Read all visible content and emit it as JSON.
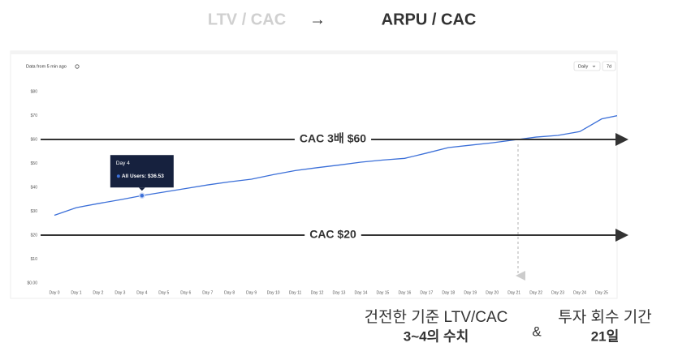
{
  "header": {
    "from": "LTV / CAC",
    "arrow": "→",
    "to": "ARPU / CAC"
  },
  "chart_data": {
    "type": "line",
    "status": "Data from 5 min ago",
    "controls": [
      "Daily",
      "7d"
    ],
    "categories": [
      "Day 0",
      "Day 1",
      "Day 2",
      "Day 3",
      "Day 4",
      "Day 5",
      "Day 6",
      "Day 7",
      "Day 8",
      "Day 9",
      "Day 10",
      "Day 11",
      "Day 12",
      "Day 13",
      "Day 14",
      "Day 15",
      "Day 16",
      "Day 17",
      "Day 18",
      "Day 19",
      "Day 20",
      "Day 21",
      "Day 22",
      "Day 23",
      "Day 24",
      "Day 25",
      null
    ],
    "series": [
      {
        "color": "#3b6fd8",
        "values": [
          28.3,
          31.5,
          33.2,
          34.8,
          36.53,
          38,
          39.5,
          41,
          42.3,
          43.4,
          45.3,
          47,
          48.2,
          49.3,
          50.5,
          51.4,
          52.1,
          54.3,
          56.6,
          57.6,
          58.6,
          59.8,
          61,
          61.7,
          63.3,
          68.6,
          70.5
        ],
        "value_labels": [
          null,
          null,
          null,
          null,
          "All Users: $36.53",
          null,
          null,
          null,
          null,
          null,
          null,
          null,
          null,
          null,
          null,
          null,
          null,
          null,
          null,
          null,
          null,
          null,
          null,
          null,
          null,
          null,
          null
        ]
      }
    ],
    "ylim": [
      0,
      80
    ],
    "yticks": [
      {
        "value": 0,
        "label": "$0.00"
      },
      {
        "value": 10,
        "label": "$10"
      },
      {
        "value": 20,
        "label": "$20"
      },
      {
        "value": 30,
        "label": "$30"
      },
      {
        "value": 40,
        "label": "$40"
      },
      {
        "value": 50,
        "label": "$50"
      },
      {
        "value": 60,
        "label": "$60"
      },
      {
        "value": 70,
        "label": "$70"
      },
      {
        "value": 80,
        "label": "$80"
      }
    ],
    "grid": false,
    "reference_lines": [
      {
        "label": "CAC 3배 $60",
        "value": 60
      },
      {
        "label": "CAC $20",
        "value": 20
      }
    ]
  },
  "footer": {
    "left": [
      "건전한 기준 LTV/CAC",
      "3~4의 수치"
    ],
    "amp": "&",
    "right": [
      "투자 회수 기간",
      "21일"
    ]
  }
}
